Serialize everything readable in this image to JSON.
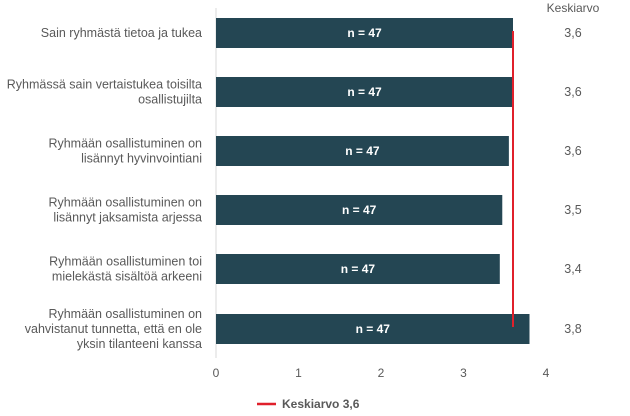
{
  "chart_data": {
    "type": "bar",
    "orientation": "horizontal",
    "categories": [
      [
        "Sain ryhmästä tietoa ja tukea"
      ],
      [
        "Ryhmässä sain vertaistukea toisilta",
        "osallistujilta"
      ],
      [
        "Ryhmään osallistuminen on",
        "lisännyt hyvinvointiani"
      ],
      [
        "Ryhmään osallistuminen on",
        "lisännyt jaksamista arjessa"
      ],
      [
        "Ryhmään osallistuminen toi",
        "mielekästä sisältöä arkeeni"
      ],
      [
        "Ryhmään osallistuminen on",
        "vahvistanut tunnetta, että en ole",
        "yksin tilanteeni kanssa"
      ]
    ],
    "values": [
      3.6,
      3.6,
      3.55,
      3.47,
      3.44,
      3.8
    ],
    "bar_labels": [
      "n = 47",
      "n = 47",
      "n = 47",
      "n = 47",
      "n = 47",
      "n = 47"
    ],
    "mean_column_header": "Keskiarvo",
    "mean_values": [
      "3,6",
      "3,6",
      "3,6",
      "3,5",
      "3,4",
      "3,8"
    ],
    "xlim": [
      0,
      4
    ],
    "xticks": [
      "0",
      "1",
      "2",
      "3",
      "4"
    ],
    "reference_line": {
      "value": 3.6,
      "color": "#e0202b"
    },
    "legend": {
      "label": "Keskiarvo 3,6",
      "placement": "bottom-center"
    },
    "bar_color": "#244653",
    "grid": false
  }
}
